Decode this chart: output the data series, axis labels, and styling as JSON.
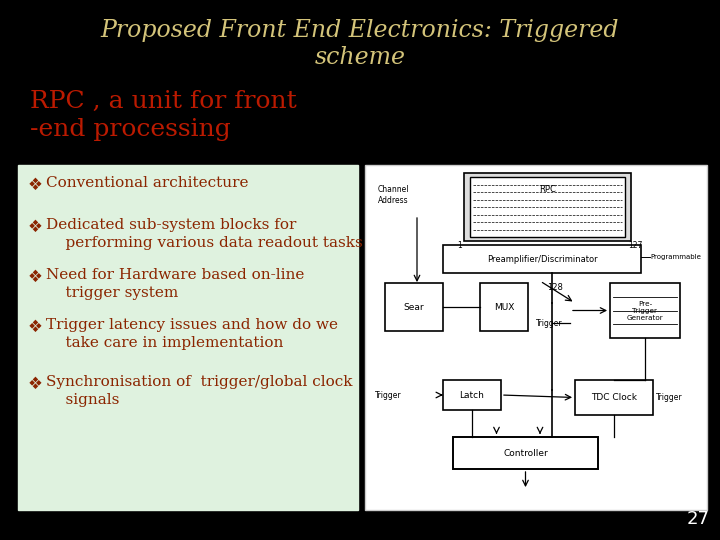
{
  "background_color": "#000000",
  "title_line1": "Proposed Front End Electronics: Triggered",
  "title_line2": "scheme",
  "title_color": "#d4c47a",
  "title_fontsize": 17,
  "subtitle_line1": "RPC , a unit for front",
  "subtitle_line2": "-end processing",
  "subtitle_color": "#bb1a00",
  "subtitle_fontsize": 18,
  "bullet_box_color": "#dff2df",
  "bullet_color": "#8b2500",
  "bullet_fontsize": 11,
  "bullets": [
    "Conventional architecture",
    "Dedicated sub-system blocks for\n    performing various data readout tasks",
    "Need for Hardware based on-line\n    trigger system",
    "Trigger latency issues and how do we\n    take care in implementation",
    "Synchronisation of  trigger/global clock\n    signals"
  ],
  "page_number": "27",
  "page_num_color": "#ffffff",
  "diagram_box_color": "#ffffff",
  "diagram_border_color": "#cccccc"
}
